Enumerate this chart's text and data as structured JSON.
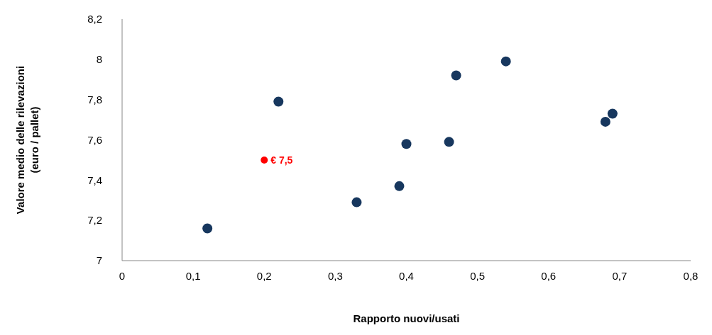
{
  "chart_data": {
    "type": "scatter",
    "xlabel": "Rapporto nuovi/usati",
    "ylabel": "Valore medio delle rilevazioni\n(euro / pallet)",
    "marker": "circle",
    "xlim": [
      0,
      0.8
    ],
    "xticks": [
      {
        "value": 0,
        "label": "0"
      },
      {
        "value": 0.1,
        "label": "0,1"
      },
      {
        "value": 0.2,
        "label": "0,2"
      },
      {
        "value": 0.3,
        "label": "0,3"
      },
      {
        "value": 0.4,
        "label": "0,4"
      },
      {
        "value": 0.5,
        "label": "0,5"
      },
      {
        "value": 0.6,
        "label": "0,6"
      },
      {
        "value": 0.7,
        "label": "0,7"
      },
      {
        "value": 0.8,
        "label": "0,8"
      }
    ],
    "ylim": [
      7,
      8.2
    ],
    "yticks": [
      {
        "value": 7,
        "label": "7"
      },
      {
        "value": 7.2,
        "label": "7,2"
      },
      {
        "value": 7.4,
        "label": "7,4"
      },
      {
        "value": 7.6,
        "label": "7,6"
      },
      {
        "value": 7.8,
        "label": "7,8"
      },
      {
        "value": 8,
        "label": "8"
      },
      {
        "value": 8.2,
        "label": "8,2"
      }
    ],
    "series": [
      {
        "color": "#17375e",
        "x": [
          0.12,
          0.22,
          0.33,
          0.39,
          0.4,
          0.46,
          0.47,
          0.54,
          0.68,
          0.69
        ],
        "values": [
          7.16,
          7.79,
          7.29,
          7.37,
          7.58,
          7.59,
          7.92,
          7.99,
          7.69,
          7.73
        ]
      },
      {
        "color": "#ff0000",
        "x": [
          0.2
        ],
        "values": [
          7.5
        ],
        "value_labels": [
          "€ 7,5"
        ]
      }
    ]
  }
}
